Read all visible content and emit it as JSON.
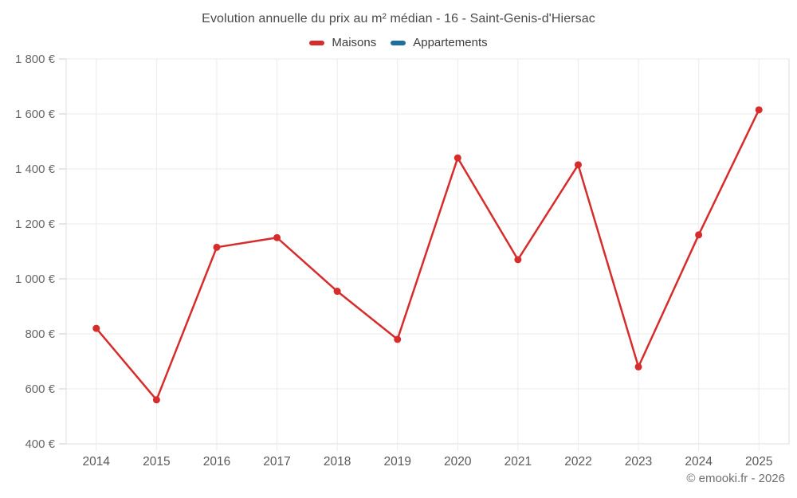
{
  "header": {
    "title": "Evolution annuelle du prix au m² médian - 16 - Saint-Genis-d'Hiersac"
  },
  "legend": {
    "items": [
      {
        "label": "Maisons",
        "color": "#d62c2c"
      },
      {
        "label": "Appartements",
        "color": "#1c6f9f"
      }
    ]
  },
  "footer": {
    "credit": "© emooki.fr - 2026"
  },
  "chart_data": {
    "type": "line",
    "title": "Evolution annuelle du prix au m² médian - 16 - Saint-Genis-d'Hiersac",
    "categories": [
      "2014",
      "2015",
      "2016",
      "2017",
      "2018",
      "2019",
      "2020",
      "2021",
      "2022",
      "2023",
      "2024",
      "2025"
    ],
    "series": [
      {
        "name": "Maisons",
        "color": "#d62c2c",
        "values": [
          820,
          560,
          1115,
          1150,
          955,
          780,
          1440,
          1070,
          1415,
          680,
          1160,
          1615
        ]
      },
      {
        "name": "Appartements",
        "color": "#1c6f9f",
        "values": []
      }
    ],
    "xlabel": "",
    "ylabel": "",
    "ylim": [
      400,
      1800
    ],
    "ytick_step": 200,
    "ytick_suffix": " €",
    "grid": true,
    "legend_position": "top",
    "colors": {
      "axis_label": "#666666",
      "x_label": "#595959",
      "gridline": "#ebebeb",
      "border": "#dedede",
      "tick": "#cccccc"
    }
  }
}
